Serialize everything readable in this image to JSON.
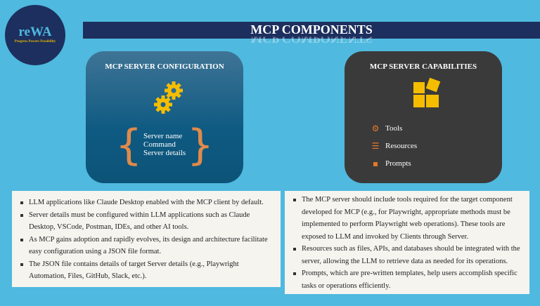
{
  "logo": {
    "name": "reWA",
    "tagline": "Progress Powers Possibility"
  },
  "header": {
    "title": "MCP COMPONENTS"
  },
  "config": {
    "title": "MCP SERVER CONFIGURATION",
    "items": [
      "Server name",
      "Command",
      "Server details"
    ]
  },
  "capabilities": {
    "title": "MCP SERVER CAPABILITIES",
    "items": [
      {
        "label": "Tools",
        "icon": "gear-icon"
      },
      {
        "label": "Resources",
        "icon": "database-icon"
      },
      {
        "label": "Prompts",
        "icon": "chat-icon"
      }
    ]
  },
  "left_notes": [
    "LLM applications like Claude Desktop enabled with the MCP client by default.",
    "Server details must be configured within LLM applications such as Claude Desktop, VSCode, Postman, IDEs, and other AI tools.",
    "As MCP gains adoption and rapidly evolves, its design and architecture facilitate easy configuration using a JSON file format.",
    "The JSON file contains details of target Server details (e.g., Playwright Automation, Files, GitHub, Slack, etc.)."
  ],
  "right_notes": [
    "The MCP server should include tools required for the target component developed for MCP (e.g., for Playwright, appropriate methods must be implemented to perform Playwright web operations). These tools are exposed to LLM and invoked by Clients through Server.",
    "Resources such as files, APIs, and databases should be integrated with the server, allowing the LLM to retrieve data as needed for its operations.",
    "Prompts, which are pre-written templates, help users accomplish specific tasks or operations efficiently."
  ],
  "colors": {
    "background": "#4fb9df",
    "navy": "#1c2f5e",
    "accent": "#f5bd00",
    "orange": "#e8782a"
  }
}
